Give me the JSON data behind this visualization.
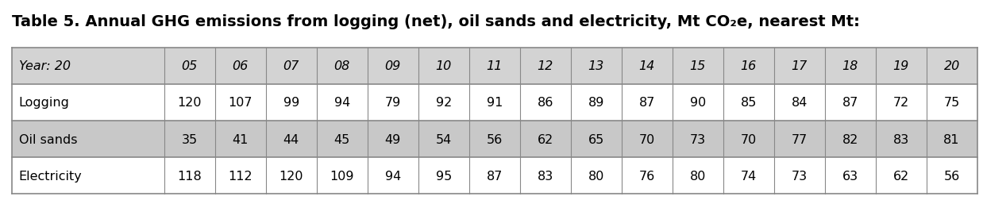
{
  "title": "Table 5. Annual GHG emissions from logging (net), oil sands and electricity, Mt CO₂e, nearest Mt:",
  "header_row": [
    "Year: 20",
    "05",
    "06",
    "07",
    "08",
    "09",
    "10",
    "11",
    "12",
    "13",
    "14",
    "15",
    "16",
    "17",
    "18",
    "19",
    "20"
  ],
  "rows": [
    [
      "Logging",
      "120",
      "107",
      "99",
      "94",
      "79",
      "92",
      "91",
      "86",
      "89",
      "87",
      "90",
      "85",
      "84",
      "87",
      "72",
      "75"
    ],
    [
      "Oil sands",
      "35",
      "41",
      "44",
      "45",
      "49",
      "54",
      "56",
      "62",
      "65",
      "70",
      "73",
      "70",
      "77",
      "82",
      "83",
      "81"
    ],
    [
      "Electricity",
      "118",
      "112",
      "120",
      "109",
      "94",
      "95",
      "87",
      "83",
      "80",
      "76",
      "80",
      "74",
      "73",
      "63",
      "62",
      "56"
    ]
  ],
  "header_bg": "#d3d3d3",
  "row_bg_white": "#ffffff",
  "row_bg_gray": "#c8c8c8",
  "border_color": "#888888",
  "title_fontsize": 14,
  "cell_fontsize": 11.5,
  "col_widths": [
    1.65,
    0.55,
    0.55,
    0.55,
    0.55,
    0.55,
    0.55,
    0.55,
    0.55,
    0.55,
    0.55,
    0.55,
    0.55,
    0.55,
    0.55,
    0.55,
    0.55
  ]
}
